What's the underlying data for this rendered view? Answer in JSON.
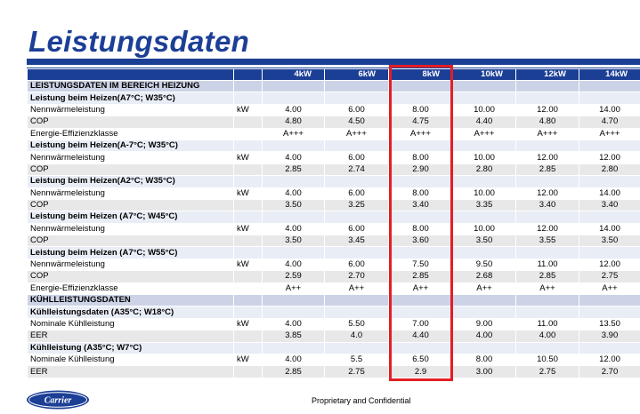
{
  "title": "Leistungsdaten",
  "columns": [
    "4kW",
    "6kW",
    "8kW",
    "10kW",
    "12kW",
    "14kW"
  ],
  "rows": [
    {
      "type": "sec",
      "label": "LEISTUNGSDATEN IM BEREICH HEIZUNG",
      "unit": "",
      "values": [
        "",
        "",
        "",
        "",
        "",
        ""
      ]
    },
    {
      "type": "sub",
      "label": "Leistung beim Heizen(A7°C; W35°C)",
      "unit": "",
      "values": [
        "",
        "",
        "",
        "",
        "",
        ""
      ]
    },
    {
      "type": "odd",
      "label": "Nennwärmeleistung",
      "unit": "kW",
      "values": [
        "4.00",
        "6.00",
        "8.00",
        "10.00",
        "12.00",
        "14.00"
      ]
    },
    {
      "type": "even",
      "label": "COP",
      "unit": "",
      "values": [
        "4.80",
        "4.50",
        "4.75",
        "4.40",
        "4.80",
        "4.70"
      ]
    },
    {
      "type": "odd",
      "label": "Energie-Effizienzklasse",
      "unit": "",
      "values": [
        "A+++",
        "A+++",
        "A+++",
        "A+++",
        "A+++",
        "A+++"
      ]
    },
    {
      "type": "sub",
      "label": "Leistung beim Heizen(A-7°C; W35°C)",
      "unit": "",
      "values": [
        "",
        "",
        "",
        "",
        "",
        ""
      ]
    },
    {
      "type": "odd",
      "label": "Nennwärmeleistung",
      "unit": "kW",
      "values": [
        "4.00",
        "6.00",
        "8.00",
        "10.00",
        "12.00",
        "12.00"
      ]
    },
    {
      "type": "even",
      "label": "COP",
      "unit": "",
      "values": [
        "2.85",
        "2.74",
        "2.90",
        "2.80",
        "2.85",
        "2.80"
      ]
    },
    {
      "type": "sub",
      "label": "Leistung beim Heizen(A2°C; W35°C)",
      "unit": "",
      "values": [
        "",
        "",
        "",
        "",
        "",
        ""
      ]
    },
    {
      "type": "odd",
      "label": "Nennwärmeleistung",
      "unit": "kW",
      "values": [
        "4.00",
        "6.00",
        "8.00",
        "10.00",
        "12.00",
        "14.00"
      ]
    },
    {
      "type": "even",
      "label": "COP",
      "unit": "",
      "values": [
        "3.50",
        "3.25",
        "3.40",
        "3.35",
        "3.40",
        "3.40"
      ]
    },
    {
      "type": "sub",
      "label": "Leistung beim Heizen (A7°C; W45°C)",
      "unit": "",
      "values": [
        "",
        "",
        "",
        "",
        "",
        ""
      ]
    },
    {
      "type": "odd",
      "label": "Nennwärmeleistung",
      "unit": "kW",
      "values": [
        "4.00",
        "6.00",
        "8.00",
        "10.00",
        "12.00",
        "14.00"
      ]
    },
    {
      "type": "even",
      "label": "COP",
      "unit": "",
      "values": [
        "3.50",
        "3.45",
        "3.60",
        "3.50",
        "3.55",
        "3.50"
      ]
    },
    {
      "type": "sub",
      "label": "Leistung beim Heizen (A7°C; W55°C)",
      "unit": "",
      "values": [
        "",
        "",
        "",
        "",
        "",
        ""
      ]
    },
    {
      "type": "odd",
      "label": "Nennwärmeleistung",
      "unit": "kW",
      "values": [
        "4.00",
        "6.00",
        "7.50",
        "9.50",
        "11.00",
        "12.00"
      ]
    },
    {
      "type": "even",
      "label": "COP",
      "unit": "",
      "values": [
        "2.59",
        "2.70",
        "2.85",
        "2.68",
        "2.85",
        "2.75"
      ]
    },
    {
      "type": "odd",
      "label": "Energie-Effizienzklasse",
      "unit": "",
      "values": [
        "A++",
        "A++",
        "A++",
        "A++",
        "A++",
        "A++"
      ]
    },
    {
      "type": "sec",
      "label": "KÜHLLEISTUNGSDATEN",
      "unit": "",
      "values": [
        "",
        "",
        "",
        "",
        "",
        ""
      ]
    },
    {
      "type": "sub",
      "label": "Kühlleistungsdaten (A35°C; W18°C)",
      "unit": "",
      "values": [
        "",
        "",
        "",
        "",
        "",
        ""
      ]
    },
    {
      "type": "odd",
      "label": "Nominale Kühlleistung",
      "unit": "kW",
      "values": [
        "4.00",
        "5.50",
        "7.00",
        "9.00",
        "11.00",
        "13.50"
      ]
    },
    {
      "type": "even",
      "label": "EER",
      "unit": "",
      "values": [
        "3.85",
        "4.0",
        "4.40",
        "4.00",
        "4.00",
        "3.90"
      ]
    },
    {
      "type": "sub",
      "label": "Kühlleistung (A35°C; W7°C)",
      "unit": "",
      "values": [
        "",
        "",
        "",
        "",
        "",
        ""
      ]
    },
    {
      "type": "odd",
      "label": "Nominale Kühlleistung",
      "unit": "kW",
      "values": [
        "4.00",
        "5.5",
        "6.50",
        "8.00",
        "10.50",
        "12.00"
      ]
    },
    {
      "type": "even",
      "label": "EER",
      "unit": "",
      "values": [
        "2.85",
        "2.75",
        "2.9",
        "3.00",
        "2.75",
        "2.70"
      ]
    }
  ],
  "highlighted_column": "8kW",
  "logo_text": "Carrier",
  "footer": "Proprietary and Confidential",
  "colors": {
    "brand": "#1c3f96",
    "highlight": "#e31e24"
  }
}
